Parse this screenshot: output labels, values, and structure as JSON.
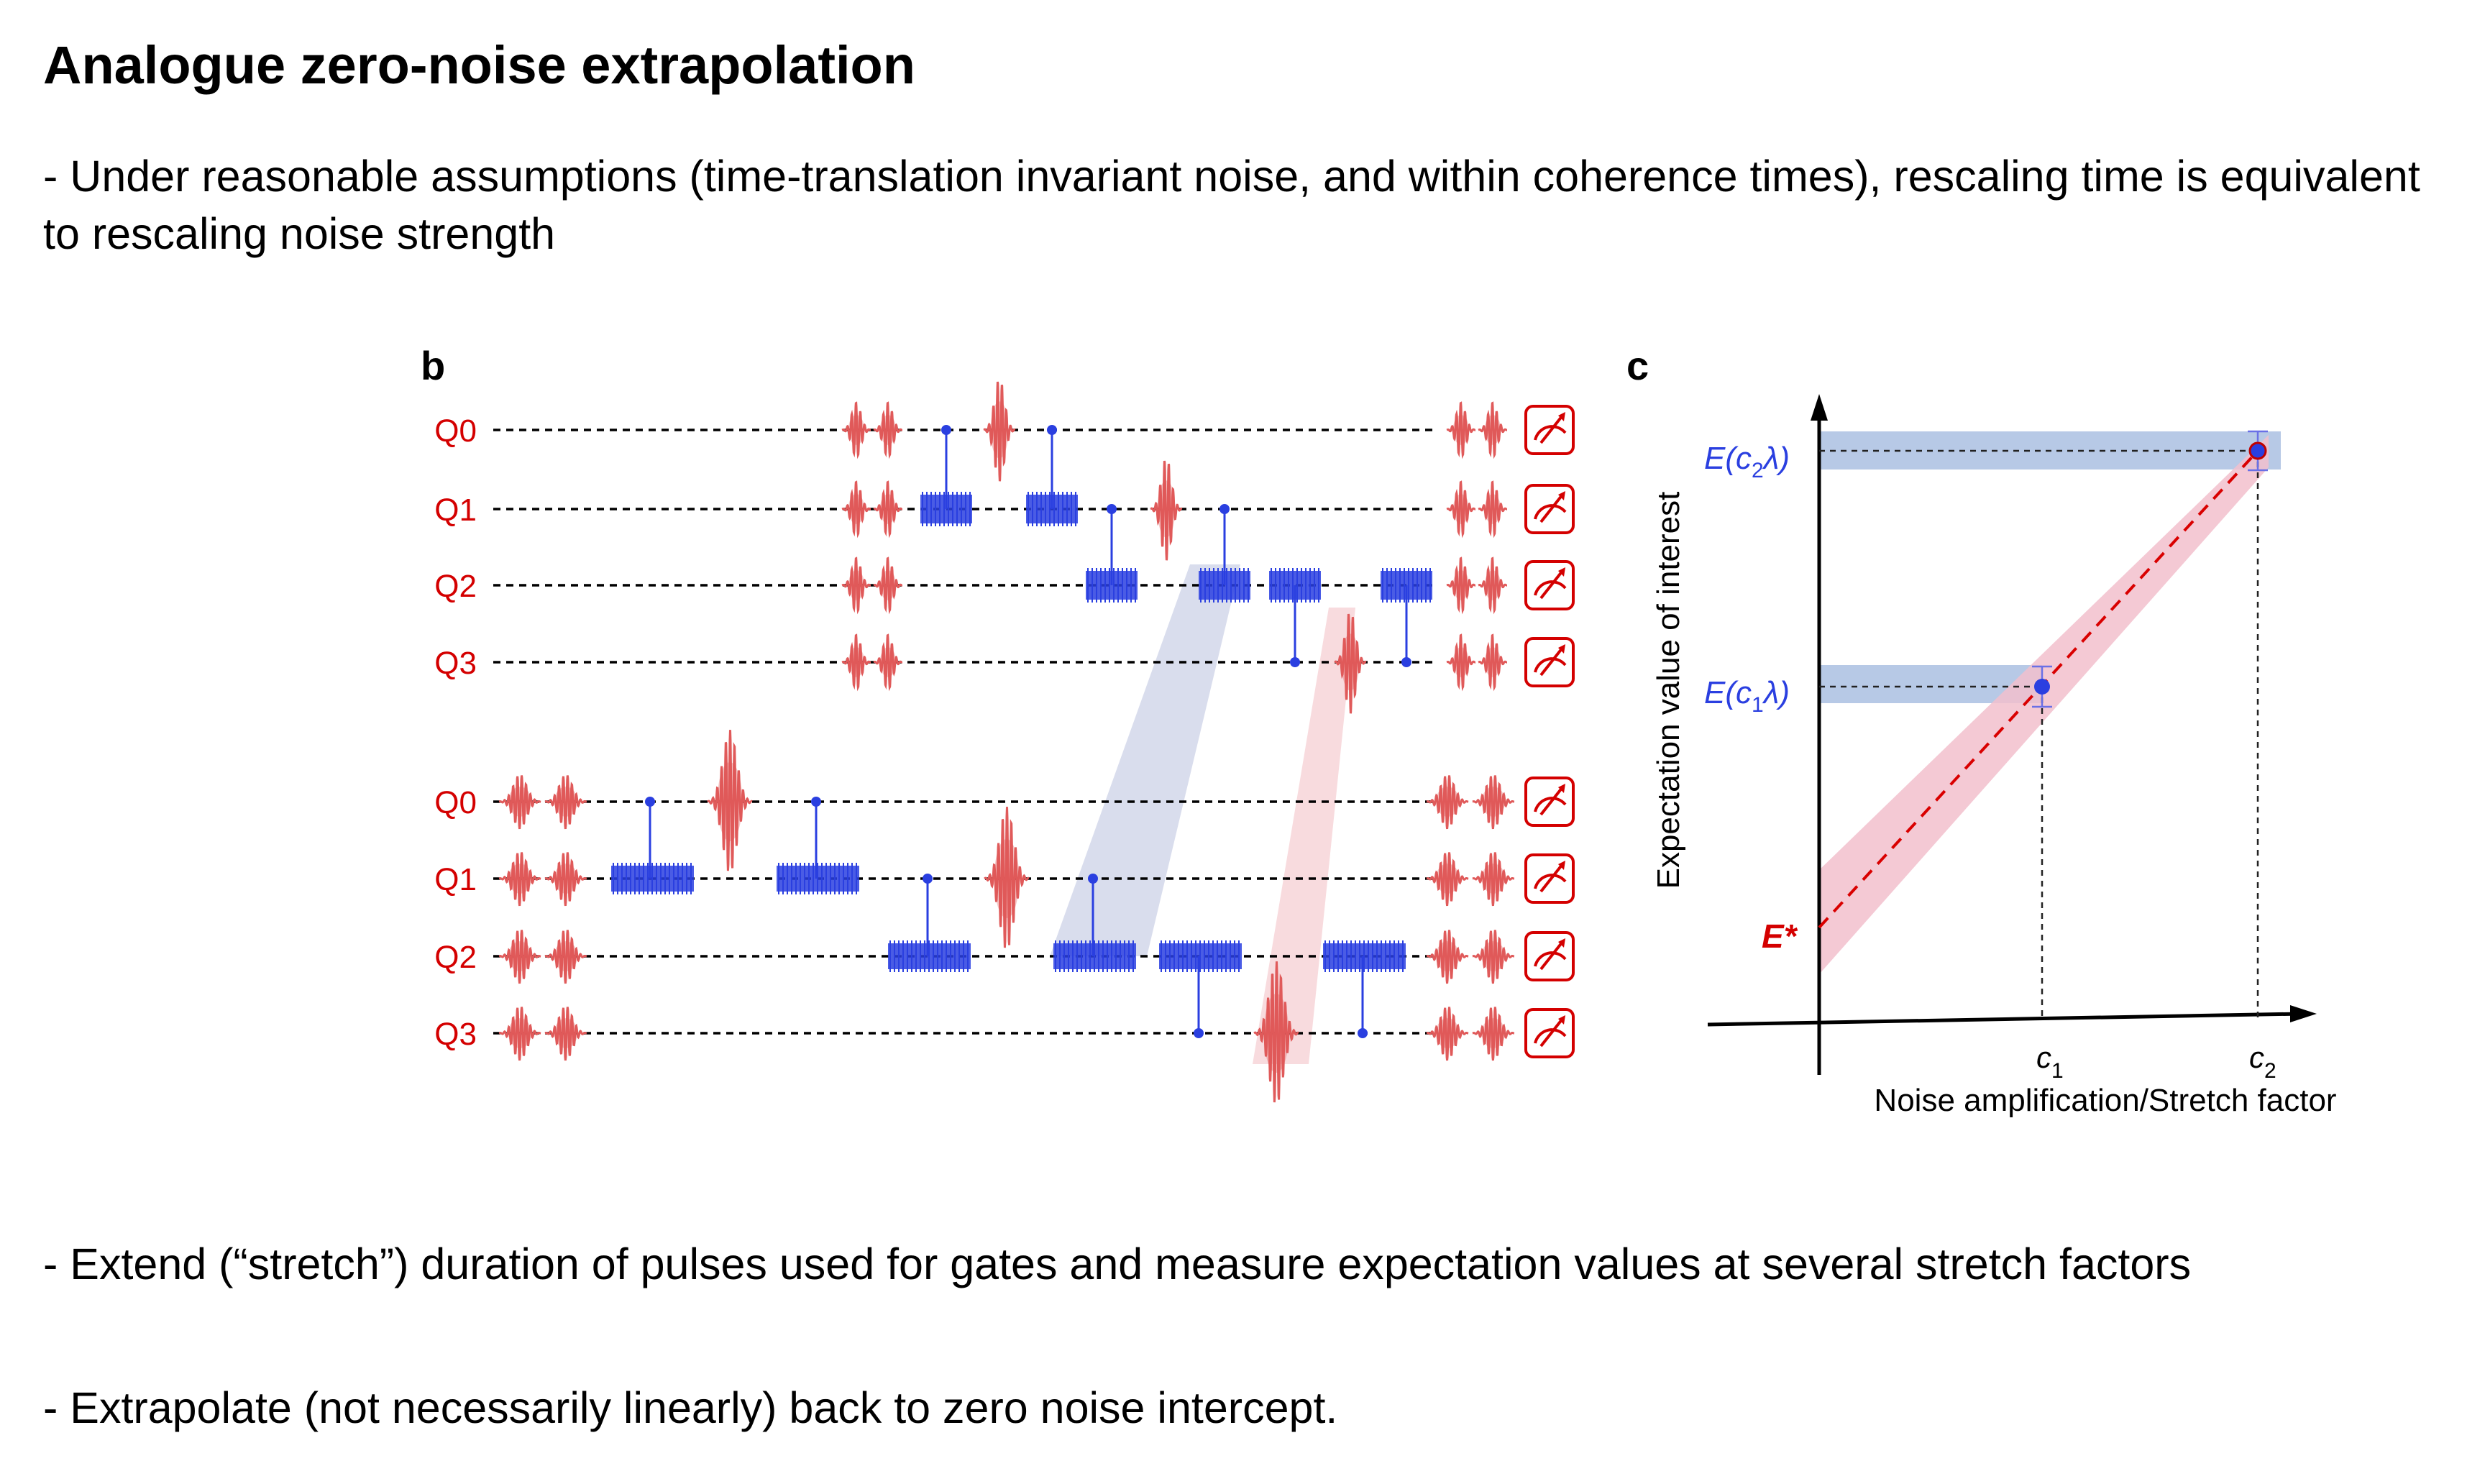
{
  "title": "Analogue zero-noise extrapolation",
  "bullets": [
    "- Under reasonable assumptions (time-translation invariant noise, and within coherence times), rescaling time is equivalent to rescaling noise strength",
    "- Extend (“stretch”) duration of pulses used for gates and measure expectation values at several stretch factors",
    "- Extrapolate (not necessarily linearly) back to zero noise intercept."
  ],
  "panel_b": {
    "label": "b",
    "circuit_top_qubits": [
      "Q0",
      "Q1",
      "Q2",
      "Q3"
    ],
    "circuit_bottom_qubits": [
      "Q0",
      "Q1",
      "Q2",
      "Q3"
    ]
  },
  "panel_c": {
    "label": "c",
    "y_axis_label": "Expectation value of interest",
    "x_axis_label": "Noise amplification/Stretch factor",
    "x_ticks": [
      {
        "base": "c",
        "sub": "1"
      },
      {
        "base": "c",
        "sub": "2"
      }
    ],
    "y_labels": [
      {
        "pre": "E(c",
        "sub": "2",
        "post": "λ)"
      },
      {
        "pre": "E(c",
        "sub": "1",
        "post": "λ)"
      }
    ],
    "intercept_label": "E*"
  },
  "colors": {
    "pulse_red": "#e05a5a",
    "gate_blue": "#2a3fe0",
    "label_red": "#d40000",
    "label_blue": "#2a3fe0",
    "band_blue": "#b7c9e6",
    "band_pink": "#f2bfcc"
  },
  "chart_data": {
    "type": "line",
    "x": [
      "0",
      "c1",
      "c2"
    ],
    "series": [
      {
        "values": [
          "E*",
          "E(c1λ)",
          "E(c2λ)"
        ]
      }
    ]
  }
}
